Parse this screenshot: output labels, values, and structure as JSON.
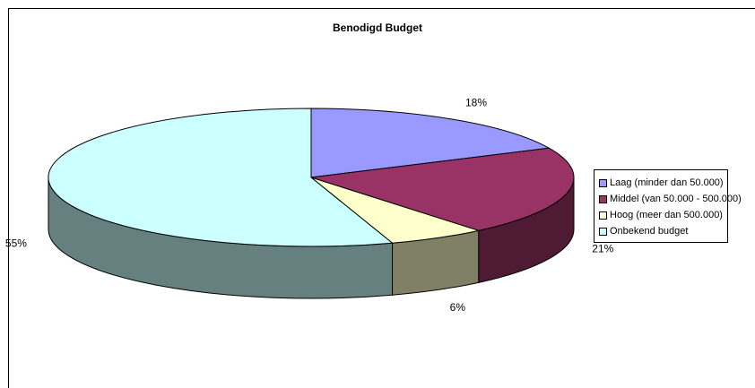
{
  "chart_data": {
    "type": "pie",
    "title": "Benodigd Budget",
    "categories": [
      "Laag (minder dan 50.000)",
      "Middel (van 50.000 - 500.000)",
      "Hoog (meer dan 500.000)",
      "Onbekend budget"
    ],
    "values": [
      18,
      21,
      6,
      55
    ],
    "value_labels": [
      "18%",
      "21%",
      "6%",
      "55%"
    ],
    "colors": [
      "#9999ff",
      "#993366",
      "#ffffcc",
      "#ccffff"
    ],
    "side_colors": [
      "#5c5c99",
      "#4f1a33",
      "#808066",
      "#668080"
    ],
    "legend_position": "right",
    "style": "3d-pie"
  }
}
